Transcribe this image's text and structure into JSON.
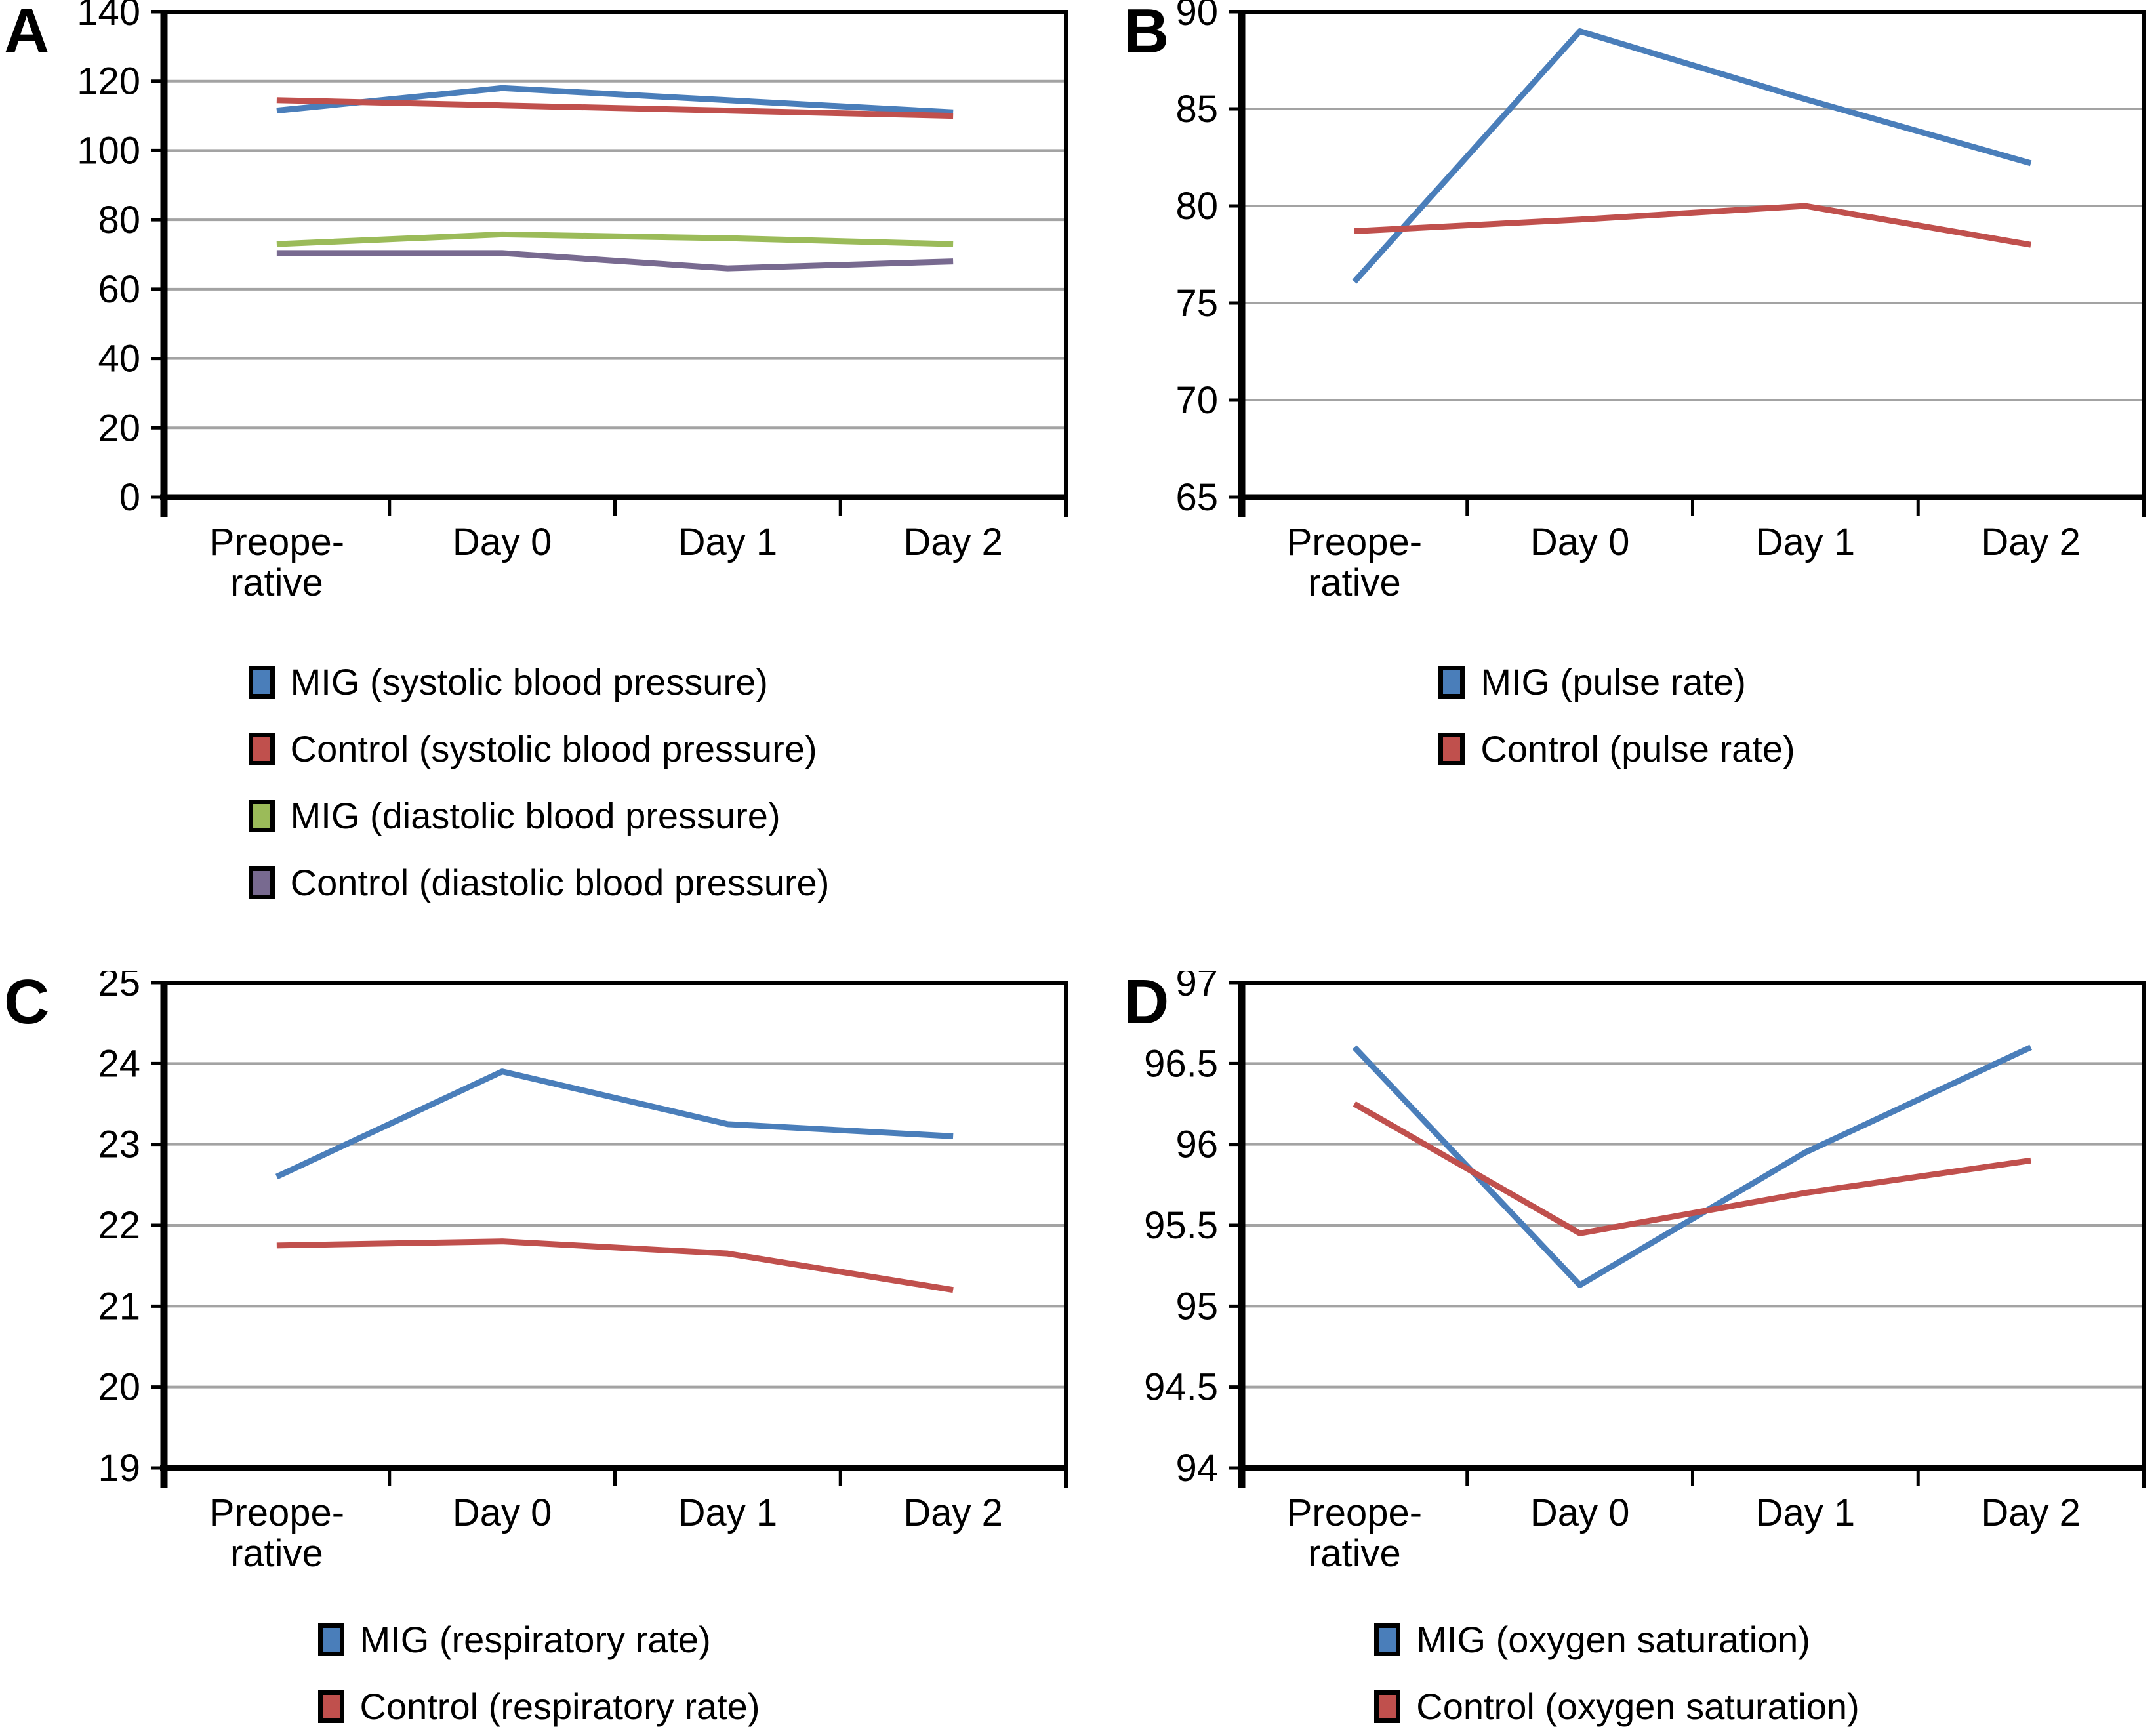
{
  "styles": {
    "background": "#ffffff",
    "gridline_color": "#a3a3a3",
    "axis_color": "#000000",
    "mig_blue": "#4a7eba",
    "control_red": "#c0504d",
    "mig_diastolic_green": "#9bbb59",
    "control_diastolic_purple": "#786a90"
  },
  "chart_data": [
    {
      "panel_label": "A",
      "type": "line",
      "title": "",
      "xlabel": "",
      "ylabel": "",
      "categories": [
        "Preoperative",
        "Day 0",
        "Day 1",
        "Day 2"
      ],
      "category_display": [
        [
          "Preope-",
          "rative"
        ],
        [
          "Day 0"
        ],
        [
          "Day 1"
        ],
        [
          "Day 2"
        ]
      ],
      "ylim": [
        0,
        140
      ],
      "yticks": [
        0,
        20,
        40,
        60,
        80,
        100,
        120,
        140
      ],
      "grid": true,
      "legend_position": "bottom",
      "series": [
        {
          "name": "MIG (systolic blood pressure)",
          "color": "#4a7eba",
          "values": [
            111.5,
            118,
            114.5,
            111
          ]
        },
        {
          "name": "Control (systolic blood pressure)",
          "color": "#c0504d",
          "values": [
            114.5,
            113,
            111.5,
            110
          ]
        },
        {
          "name": "MIG (diastolic blood pressure)",
          "color": "#9bbb59",
          "values": [
            73,
            75.8,
            74.7,
            73
          ]
        },
        {
          "name": "Control (diastolic blood pressure)",
          "color": "#786a90",
          "values": [
            70.4,
            70.4,
            66,
            68
          ]
        }
      ]
    },
    {
      "panel_label": "B",
      "type": "line",
      "title": "",
      "xlabel": "",
      "ylabel": "",
      "categories": [
        "Preoperative",
        "Day 0",
        "Day 1",
        "Day 2"
      ],
      "category_display": [
        [
          "Preope-",
          "rative"
        ],
        [
          "Day 0"
        ],
        [
          "Day 1"
        ],
        [
          "Day 2"
        ]
      ],
      "ylim": [
        65,
        90
      ],
      "yticks": [
        65,
        70,
        75,
        80,
        85,
        90
      ],
      "grid": true,
      "legend_position": "bottom",
      "series": [
        {
          "name": "MIG (pulse rate)",
          "color": "#4a7eba",
          "values": [
            76.1,
            89,
            85.5,
            82.2
          ]
        },
        {
          "name": "Control (pulse rate)",
          "color": "#c0504d",
          "values": [
            78.7,
            79.3,
            80,
            78
          ]
        }
      ]
    },
    {
      "panel_label": "C",
      "type": "line",
      "title": "",
      "xlabel": "",
      "ylabel": "",
      "categories": [
        "Preoperative",
        "Day 0",
        "Day 1",
        "Day 2"
      ],
      "category_display": [
        [
          "Preope-",
          "rative"
        ],
        [
          "Day 0"
        ],
        [
          "Day 1"
        ],
        [
          "Day 2"
        ]
      ],
      "ylim": [
        19,
        25
      ],
      "yticks": [
        19,
        20,
        21,
        22,
        23,
        24,
        25
      ],
      "grid": true,
      "legend_position": "bottom",
      "series": [
        {
          "name": "MIG (respiratory rate)",
          "color": "#4a7eba",
          "values": [
            22.6,
            23.9,
            23.25,
            23.1
          ]
        },
        {
          "name": "Control (respiratory rate)",
          "color": "#c0504d",
          "values": [
            21.75,
            21.8,
            21.65,
            21.2
          ]
        }
      ]
    },
    {
      "panel_label": "D",
      "type": "line",
      "title": "",
      "xlabel": "",
      "ylabel": "",
      "categories": [
        "Preoperative",
        "Day 0",
        "Day 1",
        "Day 2"
      ],
      "category_display": [
        [
          "Preope-",
          "rative"
        ],
        [
          "Day 0"
        ],
        [
          "Day 1"
        ],
        [
          "Day 2"
        ]
      ],
      "ylim": [
        94,
        97
      ],
      "yticks": [
        94,
        94.5,
        95,
        95.5,
        96,
        96.5,
        97
      ],
      "grid": true,
      "legend_position": "bottom",
      "series": [
        {
          "name": "MIG (oxygen saturation)",
          "color": "#4a7eba",
          "values": [
            96.6,
            95.13,
            95.95,
            96.6
          ]
        },
        {
          "name": "Control (oxygen saturation)",
          "color": "#c0504d",
          "values": [
            96.25,
            95.45,
            95.7,
            95.9
          ]
        }
      ]
    }
  ]
}
